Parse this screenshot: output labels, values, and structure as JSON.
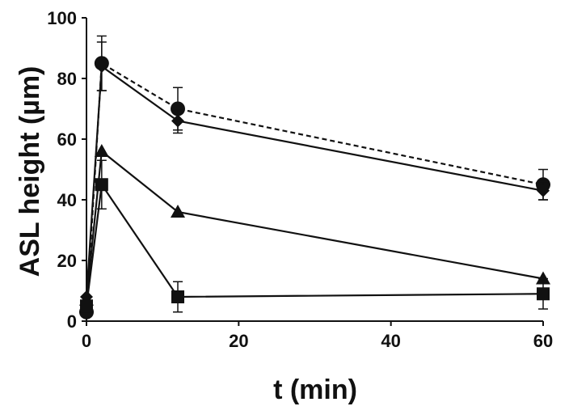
{
  "chart_data": {
    "type": "line",
    "xlabel": "t (min)",
    "ylabel": "ASL height (µm)",
    "xlim": [
      0,
      60
    ],
    "ylim": [
      0,
      100
    ],
    "xticks": [
      0,
      20,
      40,
      60
    ],
    "yticks": [
      0,
      20,
      40,
      60,
      80,
      100
    ],
    "grid": false,
    "legend": "none",
    "series": [
      {
        "marker": "circle",
        "line": "dashed",
        "color": "#111111",
        "points": [
          {
            "x": 0,
            "y": 3,
            "err": 0
          },
          {
            "x": 2,
            "y": 85,
            "err": 9
          },
          {
            "x": 12,
            "y": 70,
            "err": 7
          },
          {
            "x": 60,
            "y": 45,
            "err": 5
          }
        ]
      },
      {
        "marker": "diamond",
        "line": "solid",
        "color": "#111111",
        "points": [
          {
            "x": 0,
            "y": 8,
            "err": 0
          },
          {
            "x": 2,
            "y": 84,
            "err": 8
          },
          {
            "x": 12,
            "y": 66,
            "err": 4
          },
          {
            "x": 60,
            "y": 43,
            "err": 3
          }
        ]
      },
      {
        "marker": "triangle",
        "line": "solid",
        "color": "#111111",
        "points": [
          {
            "x": 0,
            "y": 7,
            "err": 0
          },
          {
            "x": 2,
            "y": 56,
            "err": 0
          },
          {
            "x": 12,
            "y": 36,
            "err": 0
          },
          {
            "x": 60,
            "y": 14,
            "err": 0
          }
        ]
      },
      {
        "marker": "square",
        "line": "solid",
        "color": "#111111",
        "points": [
          {
            "x": 0,
            "y": 5,
            "err": 0
          },
          {
            "x": 2,
            "y": 45,
            "err": 8
          },
          {
            "x": 12,
            "y": 8,
            "err": 5
          },
          {
            "x": 60,
            "y": 9,
            "err": 5
          }
        ]
      }
    ]
  }
}
